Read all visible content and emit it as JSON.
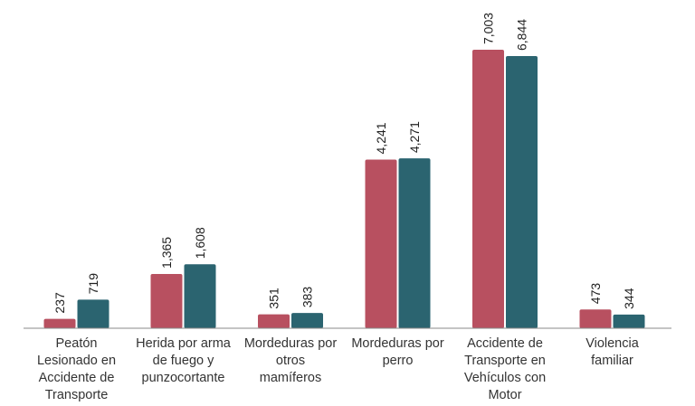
{
  "chart_data": {
    "type": "bar",
    "title": "",
    "xlabel": "",
    "ylabel": "",
    "categories": [
      [
        "Peatón",
        "Lesionado en",
        "Accidente de",
        "Transporte"
      ],
      [
        "Herida por arma",
        "de fuego y",
        "punzocortante"
      ],
      [
        "Mordeduras por",
        "otros",
        "mamíferos"
      ],
      [
        "Mordeduras por",
        "perro"
      ],
      [
        "Accidente de",
        "Transporte en",
        "Vehículos con",
        "Motor"
      ],
      [
        "Violencia",
        "familiar"
      ]
    ],
    "series": [
      {
        "values": [
          237,
          1365,
          351,
          4241,
          7003,
          473
        ],
        "color": "#b85060"
      },
      {
        "values": [
          719,
          1608,
          383,
          4271,
          6844,
          344
        ],
        "color": "#2b6470"
      }
    ],
    "value_labels": [
      [
        "237",
        "1,365",
        "351",
        "4,241",
        "7,003",
        "473"
      ],
      [
        "719",
        "1,608",
        "383",
        "4,271",
        "6,844",
        "344"
      ]
    ],
    "ylim": [
      0,
      7003
    ],
    "grid": false,
    "legend": "none",
    "axis_color": "#888888"
  }
}
